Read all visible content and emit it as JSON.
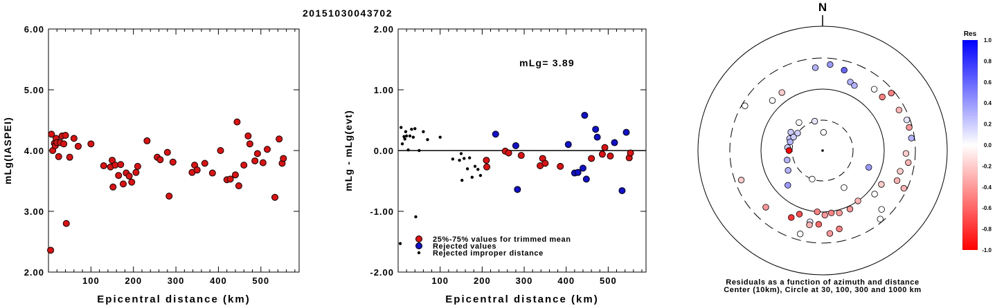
{
  "event_id": "20151030043702",
  "left_chart": {
    "ylabel": "mLg(IASPEI)",
    "xlabel": "Epicentral distance (km)",
    "xlim": [
      0,
      590
    ],
    "ylim": [
      2.0,
      6.0
    ],
    "yticks": [
      "2.00",
      "3.00",
      "4.00",
      "5.00",
      "6.00"
    ],
    "yticks_values": [
      2.0,
      3.0,
      4.0,
      5.0,
      6.0
    ],
    "xticks": [
      "100",
      "200",
      "300",
      "400",
      "500"
    ],
    "xticks_values": [
      100,
      200,
      300,
      400,
      500
    ]
  },
  "middle_chart": {
    "ylabel": "mLg - mLg(evt)",
    "xlabel": "Epicentral distance (km)",
    "annotation": "mLg= 3.89",
    "xlim": [
      0,
      590
    ],
    "ylim": [
      -2.0,
      2.0
    ],
    "yticks": [
      "-2.00",
      "-1.00",
      "0.00",
      "1.00",
      "2.00"
    ],
    "yticks_values": [
      -2.0,
      -1.0,
      0.0,
      1.0,
      2.0
    ],
    "xticks": [
      "100",
      "200",
      "300",
      "400",
      "500"
    ],
    "xticks_values": [
      100,
      200,
      300,
      400,
      500
    ],
    "legend": [
      {
        "label": "25%-75% values for trimmed mean",
        "color": "#dd1111",
        "kind": "circle"
      },
      {
        "label": "Rejected values",
        "color": "#1111cc",
        "kind": "circle"
      },
      {
        "label": "Rejected improper distance",
        "color": "#000000",
        "kind": "dot"
      }
    ]
  },
  "polar_plot": {
    "north_label": "N",
    "caption_line1": "Residuals as a function of azimuth and distance",
    "caption_line2": "Center (10km), Circle at 30, 100, 300 and 1000 km"
  },
  "colorbar": {
    "title": "Res",
    "labels": [
      "1.0",
      "0.8",
      "0.6",
      "0.4",
      "0.2",
      "0.0",
      "-0.2",
      "-0.4",
      "-0.6",
      "-0.8",
      "-1.0"
    ],
    "values": [
      1.0,
      0.8,
      0.6,
      0.4,
      0.2,
      0.0,
      -0.2,
      -0.4,
      -0.6,
      -0.8,
      -1.0
    ],
    "color_max": "#0000ff",
    "color_zero": "#ffffff",
    "color_min": "#ff0000"
  },
  "chart_data": [
    {
      "type": "scatter",
      "title": "20151030043702",
      "xlabel": "Epicentral distance (km)",
      "ylabel": "mLg(IASPEI)",
      "xlim": [
        0,
        590
      ],
      "ylim": [
        2.0,
        6.0
      ],
      "series": [
        {
          "color": "#dd1111",
          "points": [
            [
              5,
              2.36
            ],
            [
              7,
              4.27
            ],
            [
              10,
              4.0
            ],
            [
              14,
              4.12
            ],
            [
              16,
              4.08
            ],
            [
              18,
              4.2
            ],
            [
              20,
              4.13
            ],
            [
              24,
              3.9
            ],
            [
              28,
              4.13
            ],
            [
              32,
              4.24
            ],
            [
              36,
              4.11
            ],
            [
              40,
              4.25
            ],
            [
              42,
              2.8
            ],
            [
              50,
              3.89
            ],
            [
              60,
              4.2
            ],
            [
              70,
              4.07
            ],
            [
              100,
              4.11
            ],
            [
              130,
              3.75
            ],
            [
              146,
              3.73
            ],
            [
              150,
              3.84
            ],
            [
              152,
              3.4
            ],
            [
              157,
              3.76
            ],
            [
              165,
              3.59
            ],
            [
              170,
              3.77
            ],
            [
              176,
              3.45
            ],
            [
              183,
              3.63
            ],
            [
              190,
              3.58
            ],
            [
              196,
              3.48
            ],
            [
              206,
              3.64
            ],
            [
              210,
              3.74
            ],
            [
              232,
              4.16
            ],
            [
              256,
              3.89
            ],
            [
              263,
              3.85
            ],
            [
              280,
              3.97
            ],
            [
              284,
              3.25
            ],
            [
              293,
              3.81
            ],
            [
              338,
              3.64
            ],
            [
              344,
              3.76
            ],
            [
              350,
              3.68
            ],
            [
              368,
              3.79
            ],
            [
              386,
              3.63
            ],
            [
              405,
              4.0
            ],
            [
              420,
              3.52
            ],
            [
              428,
              3.53
            ],
            [
              440,
              3.6
            ],
            [
              444,
              4.47
            ],
            [
              448,
              3.42
            ],
            [
              460,
              3.76
            ],
            [
              470,
              4.24
            ],
            [
              474,
              4.11
            ],
            [
              486,
              3.83
            ],
            [
              492,
              3.95
            ],
            [
              505,
              3.8
            ],
            [
              515,
              4.02
            ],
            [
              533,
              3.23
            ],
            [
              543,
              4.19
            ],
            [
              550,
              3.79
            ],
            [
              553,
              3.87
            ]
          ]
        }
      ]
    },
    {
      "type": "scatter",
      "xlabel": "Epicentral distance (km)",
      "ylabel": "mLg - mLg(evt)",
      "xlim": [
        0,
        590
      ],
      "ylim": [
        -2.0,
        2.0
      ],
      "annotations": [
        "mLg= 3.89"
      ],
      "reference_line": 0.0,
      "series": [
        {
          "name": "25%-75% values for trimmed mean",
          "color": "#dd1111",
          "points": [
            [
              210,
              -0.16
            ],
            [
              211,
              -0.27
            ],
            [
              255,
              -0.01
            ],
            [
              263,
              -0.04
            ],
            [
              293,
              -0.08
            ],
            [
              338,
              -0.25
            ],
            [
              344,
              -0.13
            ],
            [
              350,
              -0.21
            ],
            [
              386,
              -0.26
            ],
            [
              460,
              -0.13
            ],
            [
              486,
              -0.06
            ],
            [
              492,
              0.05
            ],
            [
              505,
              -0.09
            ],
            [
              550,
              -0.12
            ],
            [
              553,
              -0.04
            ]
          ]
        },
        {
          "name": "Rejected values",
          "color": "#1111cc",
          "points": [
            [
              232,
              0.27
            ],
            [
              280,
              0.08
            ],
            [
              284,
              -0.64
            ],
            [
              405,
              0.1
            ],
            [
              420,
              -0.37
            ],
            [
              428,
              -0.36
            ],
            [
              440,
              -0.29
            ],
            [
              444,
              0.58
            ],
            [
              448,
              -0.47
            ],
            [
              470,
              0.35
            ],
            [
              474,
              0.22
            ],
            [
              515,
              0.13
            ],
            [
              533,
              -0.66
            ],
            [
              543,
              0.3
            ]
          ]
        },
        {
          "name": "Rejected improper distance",
          "color": "#000000",
          "points": [
            [
              5,
              -1.53
            ],
            [
              7,
              0.38
            ],
            [
              10,
              0.11
            ],
            [
              14,
              0.23
            ],
            [
              16,
              0.19
            ],
            [
              18,
              0.31
            ],
            [
              20,
              0.24
            ],
            [
              24,
              0.01
            ],
            [
              28,
              0.24
            ],
            [
              32,
              0.35
            ],
            [
              36,
              0.22
            ],
            [
              40,
              0.36
            ],
            [
              42,
              -1.09
            ],
            [
              50,
              0.0
            ],
            [
              60,
              0.31
            ],
            [
              70,
              0.18
            ],
            [
              100,
              0.22
            ],
            [
              130,
              -0.14
            ],
            [
              146,
              -0.16
            ],
            [
              150,
              -0.05
            ],
            [
              152,
              -0.49
            ],
            [
              157,
              -0.13
            ],
            [
              165,
              -0.3
            ],
            [
              170,
              -0.12
            ],
            [
              176,
              -0.44
            ],
            [
              183,
              -0.26
            ],
            [
              190,
              -0.31
            ],
            [
              196,
              -0.41
            ]
          ]
        }
      ]
    },
    {
      "type": "scatter",
      "polar": true,
      "rings_km": [
        10,
        30,
        100,
        300,
        1000
      ],
      "residual_range": [
        -1.0,
        1.0
      ],
      "series": [
        {
          "points": [
            {
              "az": 3,
              "ring": 0.6,
              "res": 0.0
            },
            {
              "az": 290,
              "ring": 1.15,
              "res": 0.2
            },
            {
              "az": 300,
              "ring": 1.2,
              "res": 0.2
            },
            {
              "az": 295,
              "ring": 1.05,
              "res": 0.2
            },
            {
              "az": 285,
              "ring": 1.1,
              "res": 0.3
            },
            {
              "az": 305,
              "ring": 1.0,
              "res": 0.2
            },
            {
              "az": 275,
              "ring": 1.15,
              "res": 0.2
            },
            {
              "az": 270,
              "ring": 1.1,
              "res": -1.0
            },
            {
              "az": 255,
              "ring": 1.2,
              "res": 0.3
            },
            {
              "az": 240,
              "ring": 1.3,
              "res": 0.3
            },
            {
              "az": 345,
              "ring": 1.0,
              "res": 0.1
            },
            {
              "az": 320,
              "ring": 1.2,
              "res": 0.0
            },
            {
              "az": 200,
              "ring": 1.0,
              "res": 0.0
            },
            {
              "az": 225,
              "ring": 1.6,
              "res": 0.4
            },
            {
              "az": 110,
              "ring": 1.6,
              "res": 0.4
            },
            {
              "az": 150,
              "ring": 1.4,
              "res": 0.0
            },
            {
              "az": 355,
              "ring": 2.7,
              "res": 0.3
            },
            {
              "az": 5,
              "ring": 2.8,
              "res": 0.4
            },
            {
              "az": 15,
              "ring": 2.7,
              "res": 0.6
            },
            {
              "az": 22,
              "ring": 2.4,
              "res": 0.3
            },
            {
              "az": 26,
              "ring": 2.35,
              "res": 0.3
            },
            {
              "az": 40,
              "ring": 2.6,
              "res": 0.0
            },
            {
              "az": 48,
              "ring": 2.6,
              "res": -0.5
            },
            {
              "az": 62,
              "ring": 2.8,
              "res": -0.3
            },
            {
              "az": 75,
              "ring": 2.9,
              "res": -0.4
            },
            {
              "az": 82,
              "ring": 2.9,
              "res": 0.3
            },
            {
              "az": 92,
              "ring": 2.7,
              "res": -0.2
            },
            {
              "az": 98,
              "ring": 2.8,
              "res": -0.3
            },
            {
              "az": 105,
              "ring": 2.6,
              "res": -0.2
            },
            {
              "az": 112,
              "ring": 2.6,
              "res": -0.3
            },
            {
              "az": 120,
              "ring": 2.2,
              "res": -0.2
            },
            {
              "az": 130,
              "ring": 2.2,
              "res": 0.0
            },
            {
              "az": 145,
              "ring": 2.0,
              "res": -0.3
            },
            {
              "az": 155,
              "ring": 2.1,
              "res": -0.4
            },
            {
              "az": 165,
              "ring": 2.1,
              "res": -0.4
            },
            {
              "az": 172,
              "ring": 2.05,
              "res": -0.5
            },
            {
              "az": 178,
              "ring": 2.1,
              "res": -0.4
            },
            {
              "az": 185,
              "ring": 2.0,
              "res": -0.5
            },
            {
              "az": 200,
              "ring": 2.2,
              "res": -0.7
            },
            {
              "az": 205,
              "ring": 2.4,
              "res": -0.8
            },
            {
              "az": 225,
              "ring": 2.6,
              "res": -0.4
            },
            {
              "az": 250,
              "ring": 2.8,
              "res": -0.2
            },
            {
              "az": 300,
              "ring": 2.9,
              "res": 0.0
            },
            {
              "az": 315,
              "ring": 2.3,
              "res": 0.0
            },
            {
              "az": 325,
              "ring": 2.3,
              "res": -0.2
            },
            {
              "az": 135,
              "ring": 2.7,
              "res": 0.0
            },
            {
              "az": 168,
              "ring": 2.6,
              "res": -0.5
            },
            {
              "az": 175,
              "ring": 2.7,
              "res": -0.4
            },
            {
              "az": 190,
              "ring": 2.35,
              "res": 0.1
            },
            {
              "az": 70,
              "ring": 2.9,
              "res": 0.1
            },
            {
              "az": 50,
              "ring": 2.9,
              "res": -0.5
            },
            {
              "az": 115,
              "ring": 2.9,
              "res": -0.3
            },
            {
              "az": 140,
              "ring": 2.9,
              "res": 0.0
            },
            {
              "az": 195,
              "ring": 2.8,
              "res": 0.0
            },
            {
              "az": 190,
              "ring": 2.45,
              "res": -0.3
            },
            {
              "az": 183,
              "ring": 2.4,
              "res": -0.6
            }
          ]
        }
      ]
    }
  ]
}
